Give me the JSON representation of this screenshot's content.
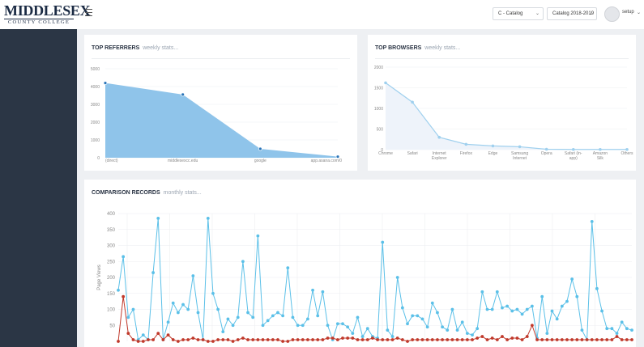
{
  "header": {
    "logo_main": "MIDDLESEX",
    "logo_sub": "COUNTY COLLEGE",
    "catalog_select": "C - Catalog",
    "year_select": "Catalog 2018-2019",
    "user": "setup"
  },
  "panels": {
    "referrers": {
      "title": "TOP REFERRERS",
      "subtitle": "weekly stats..."
    },
    "browsers": {
      "title": "TOP BROWSERS",
      "subtitle": "weekly stats..."
    },
    "comparison": {
      "title": "COMPARISON RECORDS",
      "subtitle": "monthly stats..."
    }
  },
  "colors": {
    "sidebar": "#2b3645",
    "area_fill": "#8fc4ea",
    "series_blue": "#5bc0e8",
    "series_red": "#c0392b"
  },
  "chart_data": [
    {
      "type": "area",
      "categories": [
        "(direct)",
        "middlesexcc.edu",
        "google",
        "app.asana.com/0"
      ],
      "values": [
        4200,
        3550,
        500,
        60
      ],
      "y_ticks": [
        0,
        1000,
        2000,
        3000,
        4000,
        5000
      ],
      "ylim": [
        0,
        5000
      ],
      "grid": true
    },
    {
      "type": "line",
      "categories": [
        "Chrome",
        "Safari",
        "Internet Explorer",
        "Firefox",
        "Edge",
        "Samsung Internet",
        "Opera",
        "Safari (in-app)",
        "Amazon Silk",
        "Others"
      ],
      "category_lines": [
        [
          "Chrome"
        ],
        [
          "Safari"
        ],
        [
          "Internet",
          "Explorer"
        ],
        [
          "Firefox"
        ],
        [
          "Edge"
        ],
        [
          "Samsung",
          "Internet"
        ],
        [
          "Opera"
        ],
        [
          "Safari (in-",
          "app)"
        ],
        [
          "Amazon",
          "Silk"
        ],
        [
          "Others"
        ]
      ],
      "values": [
        1620,
        1150,
        300,
        130,
        90,
        70,
        10,
        5,
        5,
        5
      ],
      "y_ticks": [
        0,
        500,
        1000,
        1500,
        2000
      ],
      "ylim": [
        0,
        2000
      ],
      "grid": true
    },
    {
      "type": "line",
      "ylabel": "Page Views",
      "y_ticks": [
        50,
        100,
        150,
        200,
        250,
        300,
        350,
        400
      ],
      "ylim": [
        0,
        400
      ],
      "grid": true,
      "series": [
        {
          "color": "#5bc0e8",
          "values": [
            160,
            265,
            75,
            100,
            5,
            20,
            5,
            215,
            385,
            5,
            60,
            120,
            90,
            115,
            100,
            205,
            90,
            5,
            385,
            150,
            100,
            30,
            70,
            50,
            75,
            250,
            90,
            75,
            330,
            50,
            65,
            80,
            90,
            80,
            230,
            75,
            50,
            50,
            70,
            160,
            80,
            155,
            50,
            5,
            55,
            55,
            45,
            25,
            75,
            15,
            40,
            15,
            10,
            310,
            35,
            15,
            200,
            105,
            55,
            80,
            80,
            70,
            45,
            120,
            90,
            45,
            35,
            100,
            35,
            60,
            25,
            20,
            40,
            155,
            100,
            100,
            155,
            105,
            110,
            95,
            100,
            85,
            100,
            110,
            10,
            140,
            25,
            95,
            70,
            110,
            125,
            195,
            140,
            35,
            5,
            375,
            165,
            95,
            40,
            40,
            25,
            60,
            40,
            35
          ]
        },
        {
          "color": "#c0392b",
          "values": [
            0,
            140,
            25,
            5,
            0,
            0,
            5,
            5,
            25,
            5,
            20,
            5,
            0,
            5,
            5,
            10,
            5,
            5,
            0,
            0,
            5,
            5,
            5,
            0,
            5,
            10,
            5,
            5,
            5,
            5,
            5,
            5,
            5,
            0,
            0,
            5,
            5,
            5,
            5,
            5,
            5,
            5,
            10,
            10,
            5,
            10,
            10,
            10,
            5,
            5,
            5,
            10,
            5,
            5,
            5,
            5,
            10,
            5,
            0,
            5,
            5,
            5,
            5,
            5,
            5,
            5,
            5,
            5,
            5,
            5,
            5,
            5,
            10,
            15,
            5,
            10,
            5,
            15,
            5,
            10,
            10,
            5,
            15,
            50,
            5,
            5,
            5,
            5,
            5,
            5,
            5,
            5,
            5,
            5,
            5,
            5,
            5,
            5,
            5,
            5,
            15,
            5,
            5,
            5
          ]
        }
      ]
    }
  ]
}
